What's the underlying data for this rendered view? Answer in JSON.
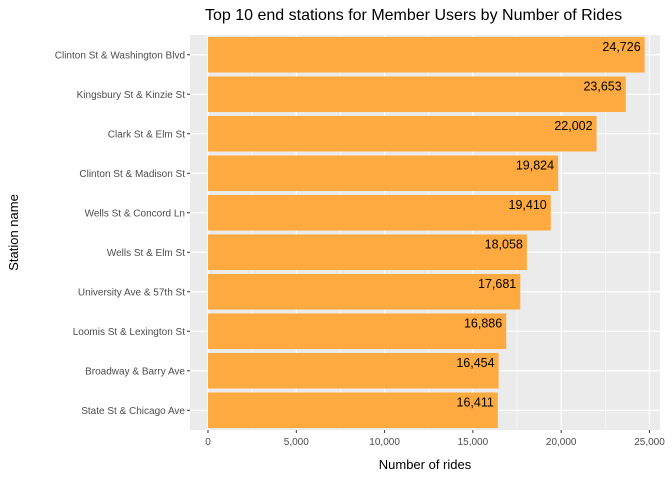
{
  "chart_data": {
    "type": "bar",
    "orientation": "horizontal",
    "title": "Top 10 end stations for Member Users by Number of Rides",
    "xlabel": "Number of rides",
    "ylabel": "Station name",
    "categories": [
      "Clinton St & Washington Blvd",
      "Kingsbury St & Kinzie St",
      "Clark St & Elm St",
      "Clinton St & Madison St",
      "Wells St & Concord Ln",
      "Wells St & Elm St",
      "University Ave & 57th St",
      "Loomis St & Lexington St",
      "Broadway & Barry Ave",
      "State St & Chicago Ave"
    ],
    "values": [
      24726,
      23653,
      22002,
      19824,
      19410,
      18058,
      17681,
      16886,
      16454,
      16411
    ],
    "value_labels": [
      "24,726",
      "23,653",
      "22,002",
      "19,824",
      "19,410",
      "18,058",
      "17,681",
      "16,886",
      "16,454",
      "16,411"
    ],
    "xlim": [
      0,
      25000
    ],
    "xticks": [
      0,
      5000,
      10000,
      15000,
      20000,
      25000
    ],
    "xtick_labels": [
      "0",
      "5,000",
      "10,000",
      "15,000",
      "20,000",
      "25,000"
    ],
    "bar_color": "#FFAA40",
    "panel_color": "#EBEBEB",
    "grid": true,
    "legend": "none"
  }
}
